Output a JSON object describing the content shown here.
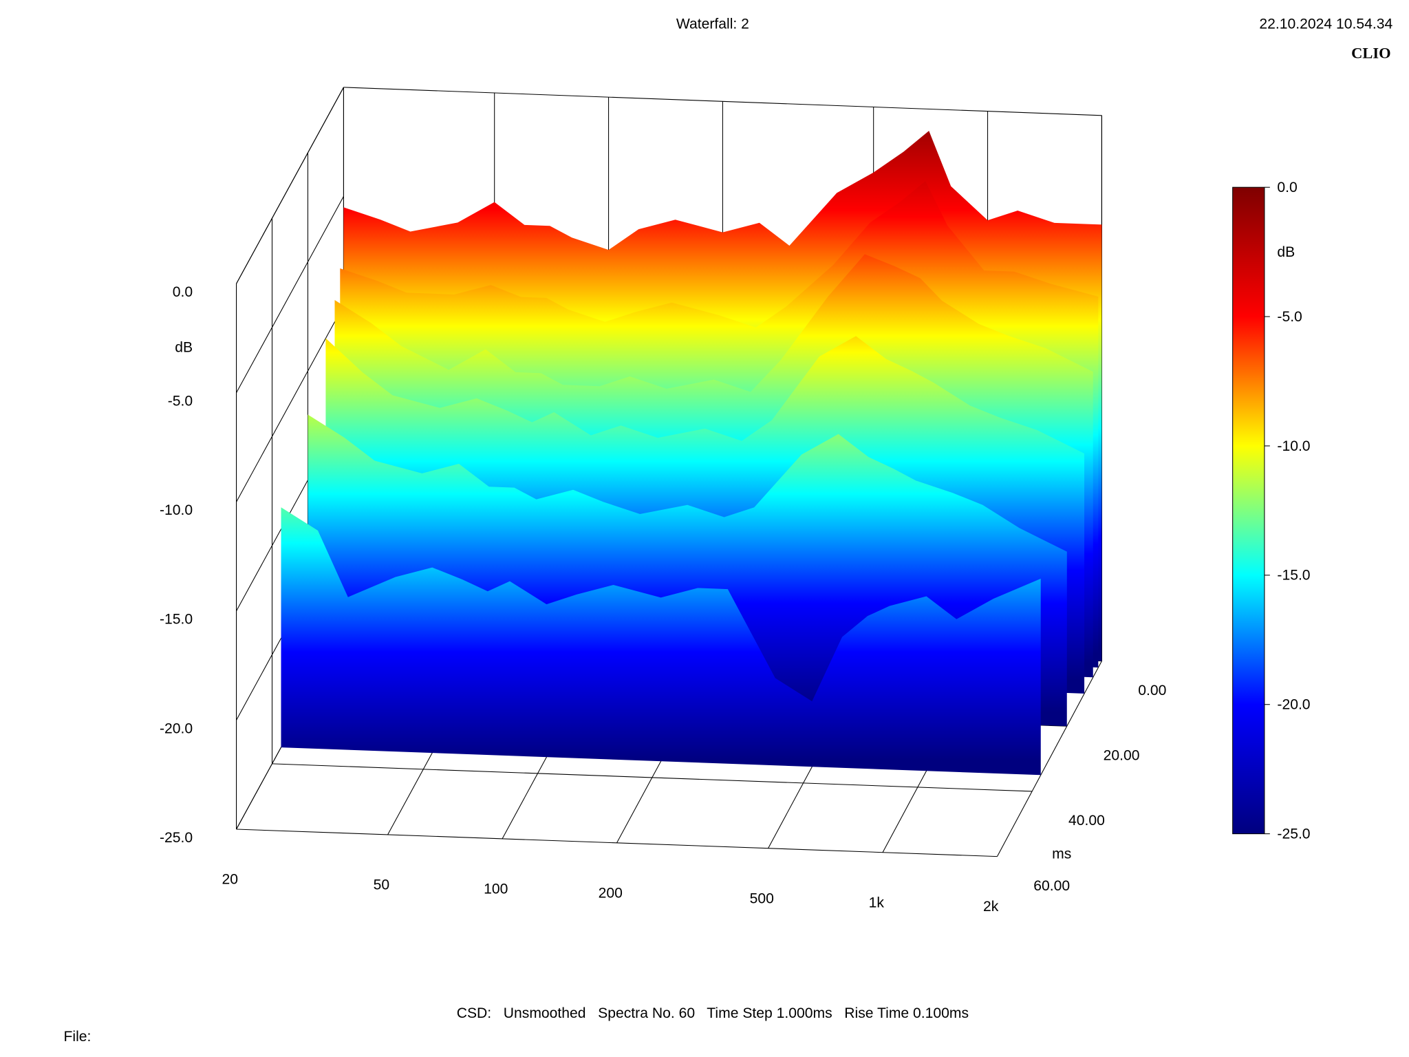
{
  "chart_data": {
    "type": "waterfall",
    "title": "Waterfall: 2",
    "date": "22.10.2024 10.54.34",
    "brand": "CLIO",
    "footer": "CSD:   Unsmoothed   Spectra No. 60   Time Step 1.000ms   Rise Time 0.100ms",
    "file_label": "File:",
    "ylabel": "dB",
    "zlabel": "ms",
    "log_x": true,
    "xlim": [
      20,
      2000
    ],
    "xticks": [
      20,
      50,
      100,
      200,
      500,
      {
        "value": 1000,
        "label": "1k"
      },
      {
        "value": 2000,
        "label": "2k"
      }
    ],
    "ylim": [
      -25,
      0
    ],
    "yticks": [
      {
        "value": 0,
        "label": "0.0"
      },
      {
        "value": -5,
        "label": "-5.0"
      },
      {
        "value": -10,
        "label": "-10.0"
      },
      {
        "value": -15,
        "label": "-15.0"
      },
      {
        "value": -20,
        "label": "-20.0"
      },
      {
        "value": -25,
        "label": "-25.0"
      }
    ],
    "zlim": [
      0,
      60
    ],
    "zticks": [
      {
        "value": 0,
        "label": "0.00"
      },
      {
        "value": 20,
        "label": "20.00"
      },
      {
        "value": 40,
        "label": "40.00"
      },
      {
        "value": 60,
        "label": "60.00"
      }
    ],
    "colormap": [
      "#00007f",
      "#0000ff",
      "#00ffff",
      "#ffff00",
      "#ff0000",
      "#7f0000"
    ],
    "colorbar": {
      "label": "dB",
      "lim": [
        -25,
        0
      ],
      "ticks": [
        {
          "value": 0,
          "label": "0.0"
        },
        {
          "value": -5,
          "label": "-5.0"
        },
        {
          "value": -10,
          "label": "-10.0"
        },
        {
          "value": -15,
          "label": "-15.0"
        },
        {
          "value": -20,
          "label": "-20.0"
        },
        {
          "value": -25,
          "label": "-25.0"
        }
      ]
    },
    "x": [
      20,
      25,
      30,
      40,
      50,
      60,
      70,
      80,
      100,
      120,
      150,
      200,
      250,
      300,
      400,
      500,
      600,
      700,
      800,
      1000,
      1200,
      1500,
      2000
    ],
    "series": [
      {
        "time": 0,
        "values": [
          -5.5,
          -6,
          -6.5,
          -6,
          -5,
          -6,
          -6,
          -6.5,
          -7,
          -6,
          -5.5,
          -6,
          -5.5,
          -6.5,
          -4,
          -3,
          -2,
          -1,
          -3.5,
          -5,
          -4.5,
          -5,
          -5
        ]
      },
      {
        "time": 2,
        "values": [
          -8,
          -8.5,
          -9,
          -9,
          -8.5,
          -9,
          -9,
          -9.5,
          -10,
          -9.5,
          -9,
          -9.5,
          -10,
          -9,
          -7,
          -5,
          -4,
          -3,
          -5,
          -7,
          -7,
          -7.5,
          -8
        ]
      },
      {
        "time": 5,
        "values": [
          -9,
          -10,
          -11,
          -12,
          -11,
          -12,
          -12,
          -12.5,
          -12.5,
          -12,
          -12.5,
          -12,
          -12.5,
          -11,
          -8,
          -6,
          -6.5,
          -7,
          -8,
          -9,
          -9.5,
          -10,
          -11
        ]
      },
      {
        "time": 10,
        "values": [
          -10,
          -11.5,
          -12.5,
          -13,
          -12.5,
          -13,
          -13.5,
          -13,
          -14,
          -13.5,
          -14,
          -13.5,
          -14,
          -13,
          -10,
          -9,
          -10,
          -10.5,
          -11,
          -12,
          -12.5,
          -13,
          -14
        ]
      },
      {
        "time": 20,
        "values": [
          -12,
          -13,
          -14,
          -14.5,
          -14,
          -15,
          -15,
          -15.5,
          -15,
          -15.5,
          -16,
          -15.5,
          -16,
          -15.5,
          -13,
          -12,
          -13,
          -13.5,
          -14,
          -14.5,
          -15,
          -16,
          -17
        ]
      },
      {
        "time": 35,
        "values": [
          -14,
          -15,
          -18,
          -17,
          -16.5,
          -17,
          -17.5,
          -17,
          -18,
          -17.5,
          -17,
          -17.5,
          -17,
          -17,
          -21,
          -22,
          -19,
          -18,
          -17.5,
          -17,
          -18,
          -17,
          -16
        ]
      }
    ]
  }
}
